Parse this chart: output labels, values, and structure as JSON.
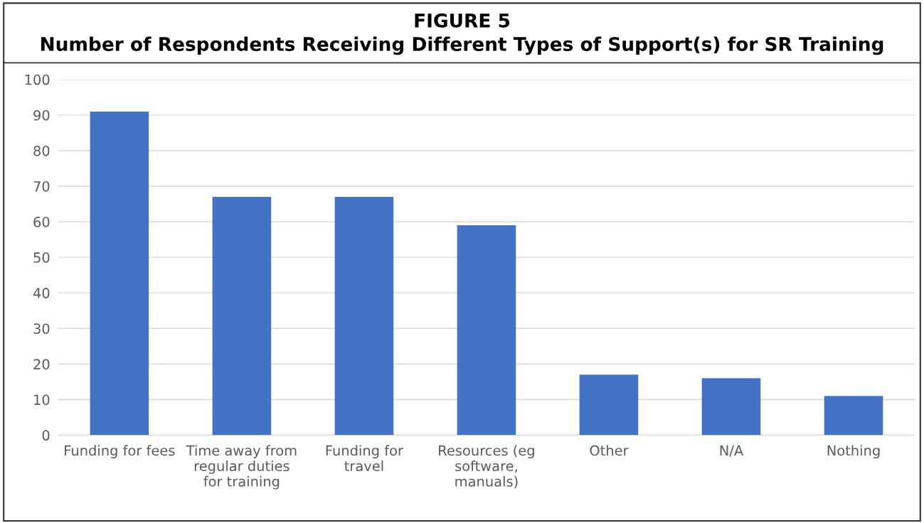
{
  "chart_data": {
    "type": "bar",
    "title": "FIGURE 5",
    "subtitle": "Number of Respondents Receiving Different Types of Support(s) for SR Training",
    "categories": [
      "Funding for fees",
      "Time away from\nregular duties\nfor training",
      "Funding for\ntravel",
      "Resources (eg\nsoftware,\nmanuals)",
      "Other",
      "N/A",
      "Nothing"
    ],
    "values": [
      91,
      67,
      67,
      59,
      17,
      16,
      11
    ],
    "color": "#4472c4",
    "ylim": [
      0,
      100
    ],
    "yticks": [
      0,
      10,
      20,
      30,
      40,
      50,
      60,
      70,
      80,
      90,
      100
    ],
    "grid": "y"
  }
}
